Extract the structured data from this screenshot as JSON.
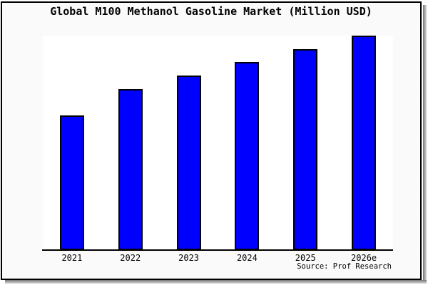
{
  "title": "Global M100 Methanol Gasoline Market (Million USD)",
  "source_note": "Source: Prof Research",
  "colors": {
    "bar_fill": "#0000ff",
    "bar_border": "#000000",
    "figure_background": "#fafafa",
    "plot_background": "#ffffff",
    "axis_line": "#000000",
    "frame_border": "#000000",
    "text": "#000000"
  },
  "chart_data": {
    "type": "bar",
    "title": "Global M100 Methanol Gasoline Market (Million USD)",
    "categories": [
      "2021",
      "2022",
      "2023",
      "2024",
      "2025",
      "2026e"
    ],
    "values": [
      62.8,
      75.1,
      81.4,
      87.7,
      93.7,
      100
    ],
    "value_note": "No y-axis ticks or data labels visible; values are relative bar heights with tallest bar (2026e) = 100",
    "xlabel": "",
    "ylabel": "",
    "ylim": [
      0,
      100
    ],
    "grid": false,
    "legend": false,
    "bar_color": "#0000ff",
    "source": "Source: Prof Research"
  }
}
